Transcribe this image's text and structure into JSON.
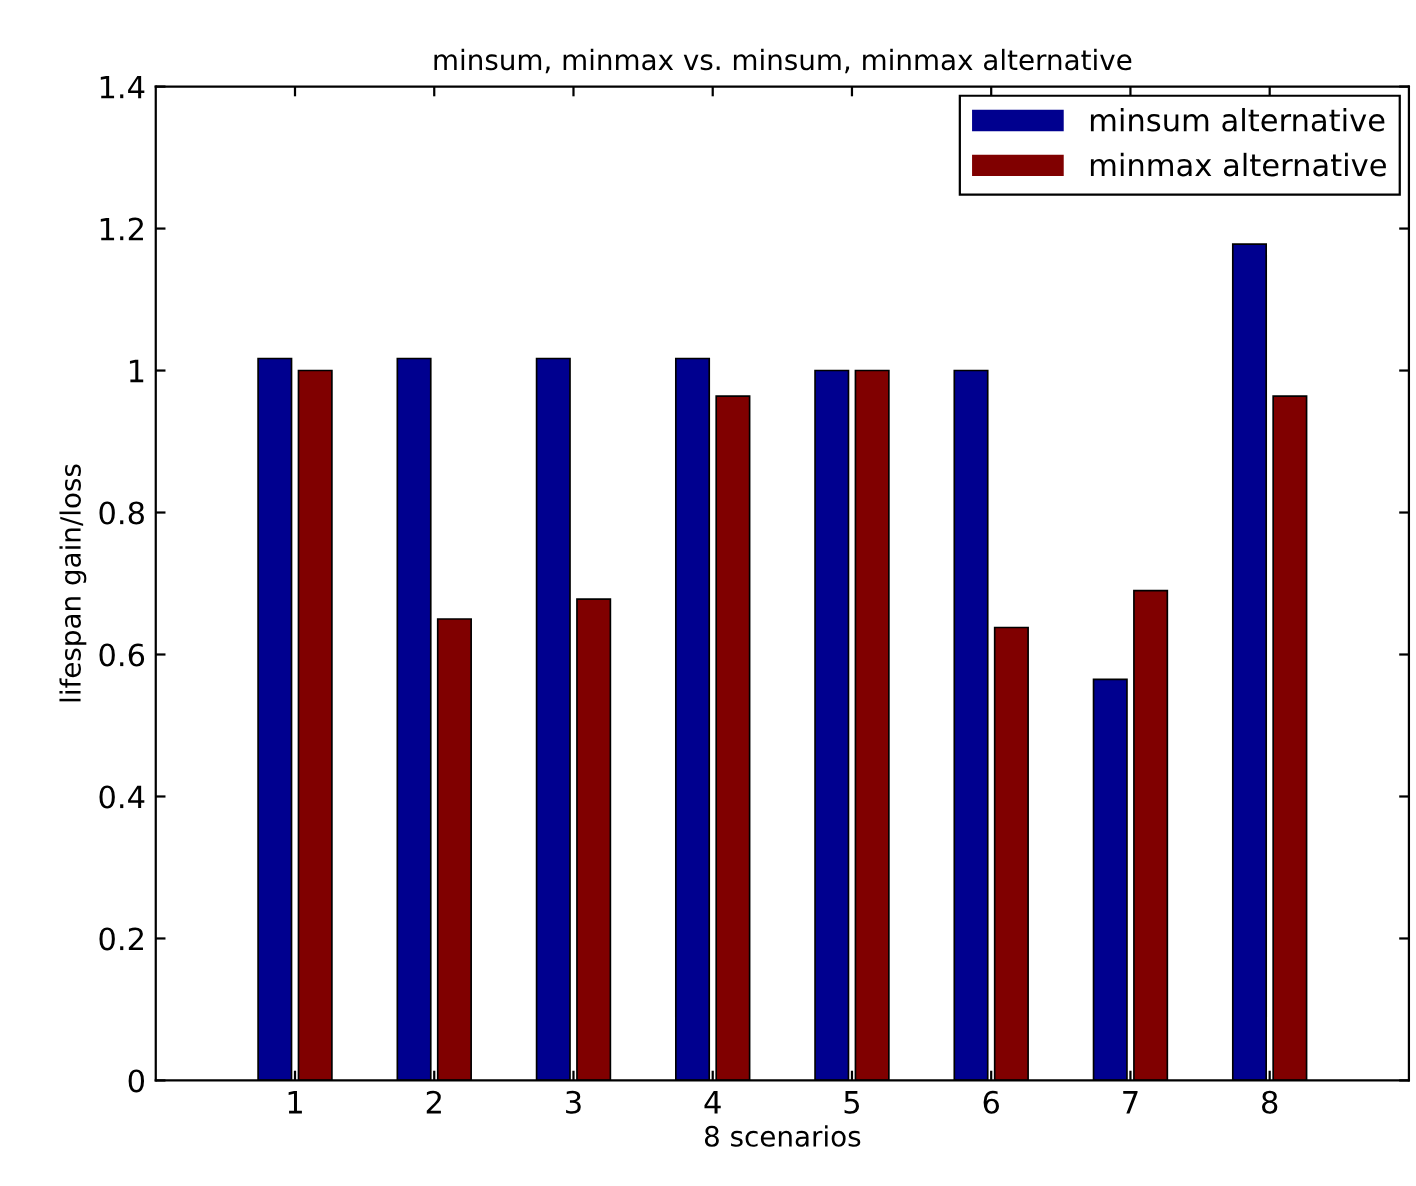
{
  "chart_data": {
    "type": "bar",
    "title": "minsum, minmax vs. minsum, minmax alternative",
    "xlabel": "8 scenarios",
    "ylabel": "lifespan gain/loss",
    "categories": [
      "1",
      "2",
      "3",
      "4",
      "5",
      "6",
      "7",
      "8"
    ],
    "series": [
      {
        "name": "minsum alternative",
        "color": "#00008f",
        "values": [
          1.017,
          1.017,
          1.017,
          1.017,
          1.0,
          1.0,
          0.565,
          1.178
        ]
      },
      {
        "name": "minmax alternative",
        "color": "#800000",
        "values": [
          1.0,
          0.65,
          0.678,
          0.964,
          1.0,
          0.638,
          0.69,
          0.964
        ]
      }
    ],
    "ylim": [
      0,
      1.4
    ],
    "yticks": [
      0,
      0.2,
      0.4,
      0.6,
      0.8,
      1,
      1.2,
      1.4
    ],
    "grid": false,
    "legend": "top right"
  }
}
